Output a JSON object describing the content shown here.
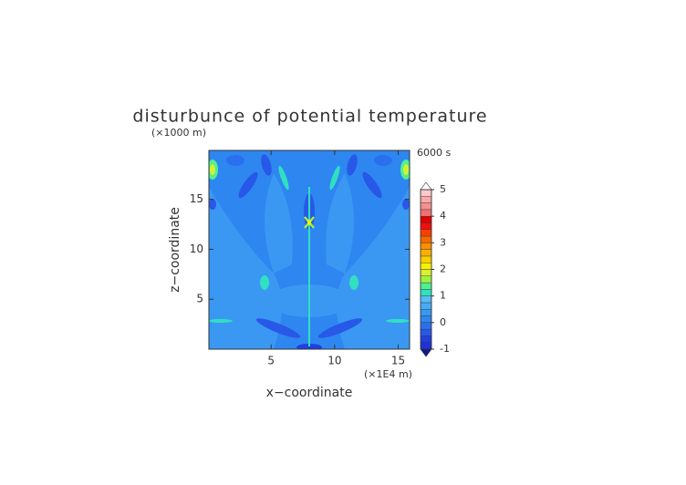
{
  "chart_data": {
    "type": "contour",
    "title": "disturbunce of potential temperature",
    "y_unit": "(×1000 m)",
    "x_unit": "(×1E4 m)",
    "time_label": "6000 s",
    "xlabel": "x−coordinate",
    "ylabel": "z−coordinate",
    "xlim": [
      0.1,
      15.9
    ],
    "xticks": [
      5,
      10,
      15
    ],
    "ylim": [
      0,
      19.9
    ],
    "yticks": [
      5,
      10,
      15
    ],
    "levels": [
      -1,
      -0.75,
      -0.5,
      -0.25,
      0,
      0.25,
      0.5,
      0.75,
      1,
      1.25,
      1.5,
      1.75,
      2,
      2.25,
      2.5,
      2.75,
      3,
      3.25,
      3.5,
      3.75,
      4,
      4.25,
      4.5,
      4.75,
      5
    ],
    "colors": [
      "#1e32d8",
      "#2040e0",
      "#2858e8",
      "#2a70ee",
      "#2e86f0",
      "#3a98f2",
      "#48aaf4",
      "#56bcf6",
      "#30e0c0",
      "#50f090",
      "#a0f040",
      "#d8f030",
      "#f8f000",
      "#f8d000",
      "#f8b000",
      "#f89000",
      "#f86800",
      "#f84000",
      "#f01010",
      "#e00000",
      "#f07070",
      "#f49090",
      "#f8a8a8",
      "#fcc8c8"
    ],
    "under_color": "#101890",
    "over_color": "#ffffff",
    "cbar_ticks": [
      -1,
      0,
      1,
      2,
      3,
      4,
      5
    ]
  }
}
